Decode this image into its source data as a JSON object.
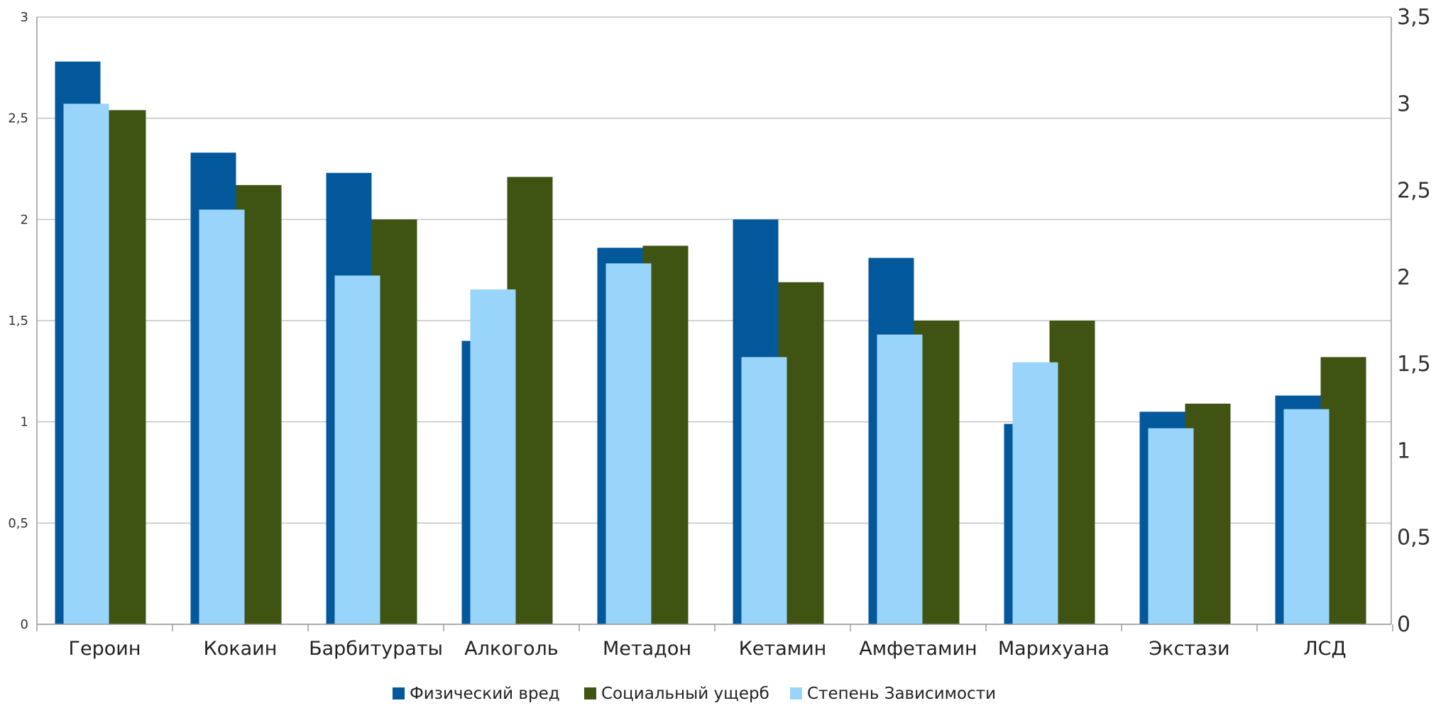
{
  "chart_data": {
    "type": "bar",
    "categories": [
      "Героин",
      "Кокаин",
      "Барбитураты",
      "Алкоголь",
      "Метадон",
      "Кетамин",
      "Амфетамин",
      "Марихуана",
      "Экстази",
      "ЛСД"
    ],
    "series": [
      {
        "name": "Физический вред",
        "axis": "left",
        "color": "#03589c",
        "values": [
          2.78,
          2.33,
          2.23,
          1.4,
          1.86,
          2.0,
          1.81,
          0.99,
          1.05,
          1.13
        ]
      },
      {
        "name": "Социальный ущерб",
        "axis": "left",
        "color": "#3f5412",
        "values": [
          2.54,
          2.17,
          2.0,
          2.21,
          1.87,
          1.69,
          1.5,
          1.5,
          1.09,
          1.32
        ]
      },
      {
        "name": "Степень Зависимости",
        "axis": "right",
        "color": "#99d4fb",
        "values": [
          3.0,
          2.39,
          2.01,
          1.93,
          2.08,
          1.54,
          1.67,
          1.51,
          1.13,
          1.24
        ]
      }
    ],
    "y_left": {
      "min": 0,
      "max": 3,
      "ticks": [
        "0",
        "0,5",
        "1",
        "1,5",
        "2",
        "2,5",
        "3"
      ]
    },
    "y_right": {
      "min": 0,
      "max": 3.5,
      "ticks": [
        "0",
        "0,5",
        "1",
        "1,5",
        "2",
        "2,5",
        "3",
        "3,5"
      ]
    },
    "grid": true,
    "legend_position": "bottom"
  }
}
